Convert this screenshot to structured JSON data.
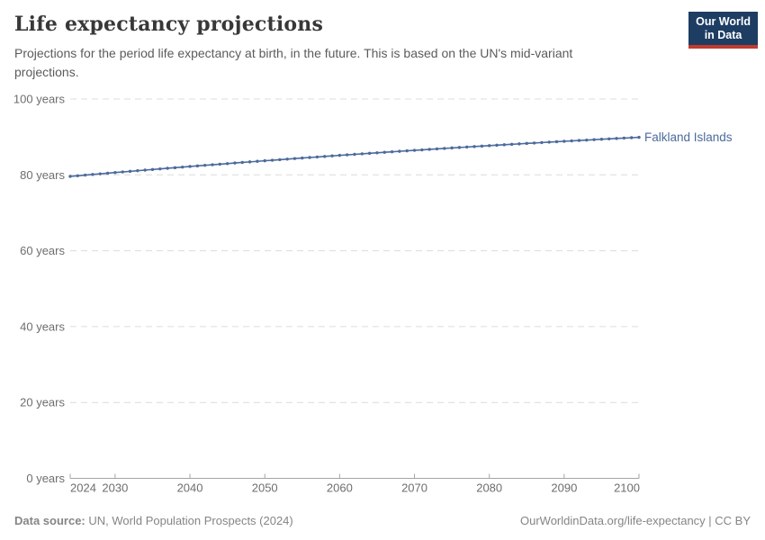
{
  "header": {
    "title": "Life expectancy projections",
    "subtitle": "Projections for the period life expectancy at birth, in the future. This is based on the UN's mid-variant projections.",
    "logo": {
      "line1": "Our World",
      "line2": "in Data",
      "bg_color": "#1d3d63",
      "bar_color": "#c23b2f"
    }
  },
  "footer": {
    "source_label": "Data source:",
    "source_text": "UN, World Population Prospects (2024)",
    "link_text": "OurWorldinData.org/life-expectancy | CC BY"
  },
  "colors": {
    "gridline": "#dcdcdc",
    "axis": "#a5a5a5",
    "tick_label": "#6e6e6e",
    "series_blue": "#4c6a9c"
  },
  "chart_data": {
    "type": "line",
    "title": "Life expectancy projections",
    "subtitle": "Projections for the period life expectancy at birth, in the future. This is based on the UN's mid-variant projections.",
    "xlabel": "",
    "ylabel": "",
    "xlim": [
      2024,
      2100
    ],
    "ylim": [
      0,
      100
    ],
    "grid": "horizontal-dashed",
    "legend": "series-end-label",
    "x_ticks": [
      2024,
      2030,
      2040,
      2050,
      2060,
      2070,
      2080,
      2090,
      2100
    ],
    "y_ticks": [
      {
        "value": 0,
        "label": "0 years"
      },
      {
        "value": 20,
        "label": "20 years"
      },
      {
        "value": 40,
        "label": "40 years"
      },
      {
        "value": 60,
        "label": "60 years"
      },
      {
        "value": 80,
        "label": "80 years"
      },
      {
        "value": 100,
        "label": "100 years"
      }
    ],
    "series": [
      {
        "name": "Falkland Islands",
        "color": "#4c6a9c",
        "x": [
          2024,
          2025,
          2026,
          2027,
          2028,
          2029,
          2030,
          2031,
          2032,
          2033,
          2034,
          2035,
          2036,
          2037,
          2038,
          2039,
          2040,
          2041,
          2042,
          2043,
          2044,
          2045,
          2046,
          2047,
          2048,
          2049,
          2050,
          2051,
          2052,
          2053,
          2054,
          2055,
          2056,
          2057,
          2058,
          2059,
          2060,
          2061,
          2062,
          2063,
          2064,
          2065,
          2066,
          2067,
          2068,
          2069,
          2070,
          2071,
          2072,
          2073,
          2074,
          2075,
          2076,
          2077,
          2078,
          2079,
          2080,
          2081,
          2082,
          2083,
          2084,
          2085,
          2086,
          2087,
          2088,
          2089,
          2090,
          2091,
          2092,
          2093,
          2094,
          2095,
          2096,
          2097,
          2098,
          2099,
          2100
        ],
        "values": [
          79.6,
          79.77,
          79.94,
          80.11,
          80.27,
          80.44,
          80.61,
          80.77,
          80.93,
          81.1,
          81.26,
          81.42,
          81.58,
          81.74,
          81.89,
          82.05,
          82.21,
          82.36,
          82.52,
          82.67,
          82.82,
          82.97,
          83.13,
          83.28,
          83.42,
          83.57,
          83.72,
          83.86,
          84.01,
          84.15,
          84.3,
          84.44,
          84.58,
          84.72,
          84.86,
          85.0,
          85.14,
          85.28,
          85.41,
          85.55,
          85.68,
          85.81,
          85.95,
          86.08,
          86.21,
          86.34,
          86.47,
          86.59,
          86.72,
          86.85,
          86.97,
          87.1,
          87.22,
          87.34,
          87.46,
          87.58,
          87.7,
          87.82,
          87.94,
          88.06,
          88.17,
          88.29,
          88.4,
          88.52,
          88.63,
          88.74,
          88.85,
          88.96,
          89.07,
          89.17,
          89.28,
          89.39,
          89.49,
          89.6,
          89.7,
          89.8,
          89.9
        ]
      }
    ]
  }
}
